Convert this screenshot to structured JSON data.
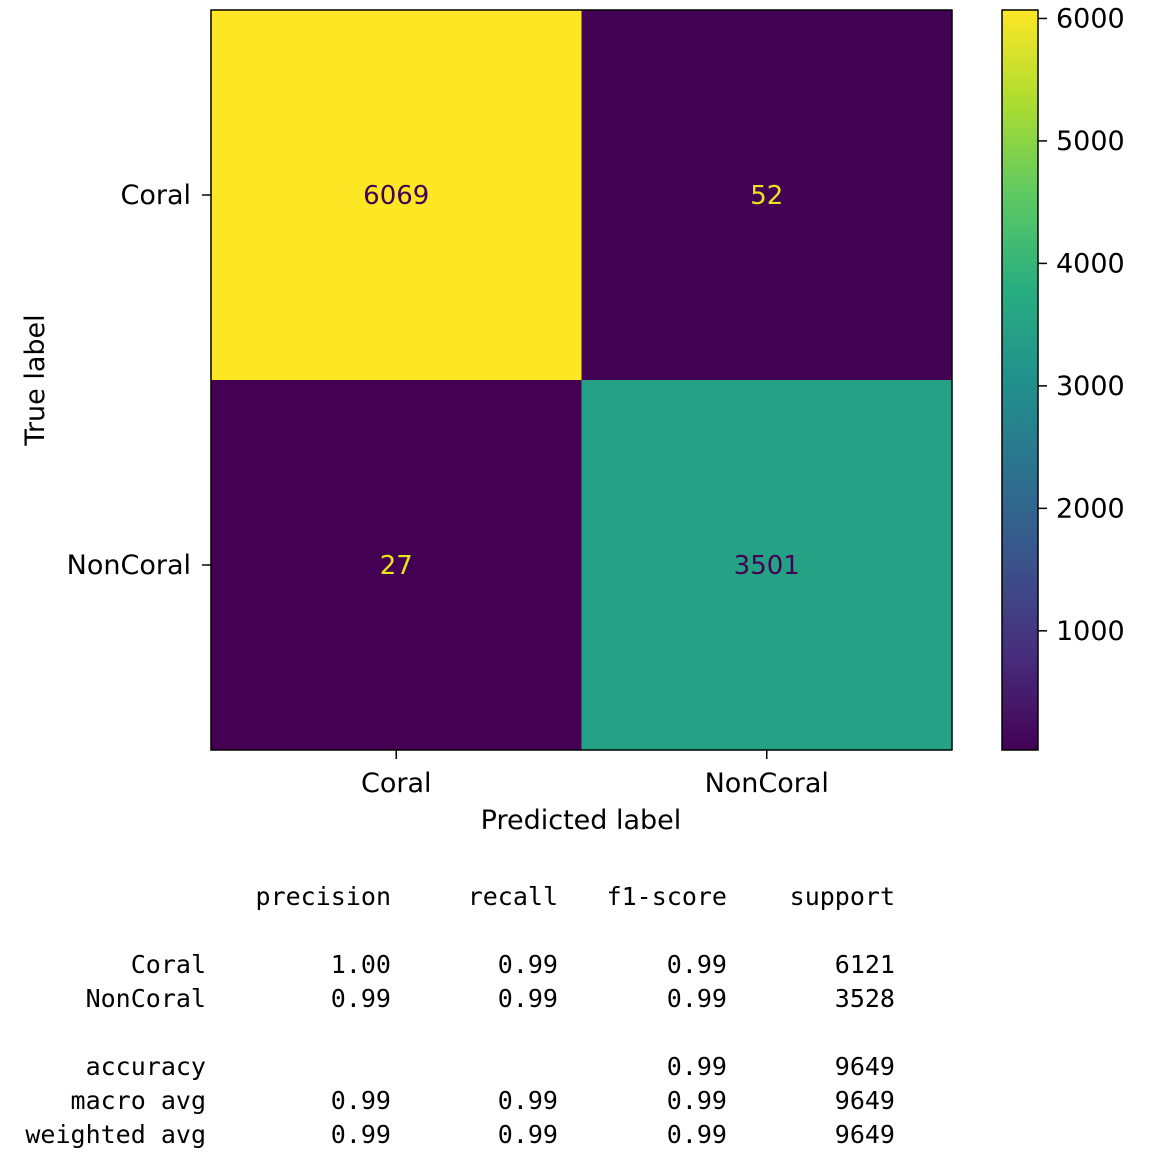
{
  "chart_data": {
    "type": "heatmap",
    "title": "",
    "xlabel": "Predicted label",
    "ylabel": "True label",
    "x_categories": [
      "Coral",
      "NonCoral"
    ],
    "y_categories": [
      "Coral",
      "NonCoral"
    ],
    "values": [
      [
        6069,
        52
      ],
      [
        27,
        3501
      ]
    ],
    "colormap": "viridis",
    "colorbar": {
      "ticks": [
        1000,
        2000,
        3000,
        4000,
        5000,
        6000
      ],
      "range": [
        27,
        6069
      ]
    },
    "colors": {
      "high": "#fde725",
      "low": "#440154",
      "mid_cell": "#4da389",
      "text_on_dark": "#e8e419",
      "text_on_light": "#440154"
    }
  },
  "report": {
    "headers": [
      "precision",
      "recall",
      "f1-score",
      "support"
    ],
    "rows": [
      {
        "label": "Coral",
        "values": [
          "1.00",
          "0.99",
          "0.99",
          "6121"
        ]
      },
      {
        "label": "NonCoral",
        "values": [
          "0.99",
          "0.99",
          "0.99",
          "3528"
        ]
      },
      {
        "label": "accuracy",
        "values": [
          "",
          "",
          "0.99",
          "9649"
        ]
      },
      {
        "label": "macro avg",
        "values": [
          "0.99",
          "0.99",
          "0.99",
          "9649"
        ]
      },
      {
        "label": "weighted avg",
        "values": [
          "0.99",
          "0.99",
          "0.99",
          "9649"
        ]
      }
    ]
  }
}
